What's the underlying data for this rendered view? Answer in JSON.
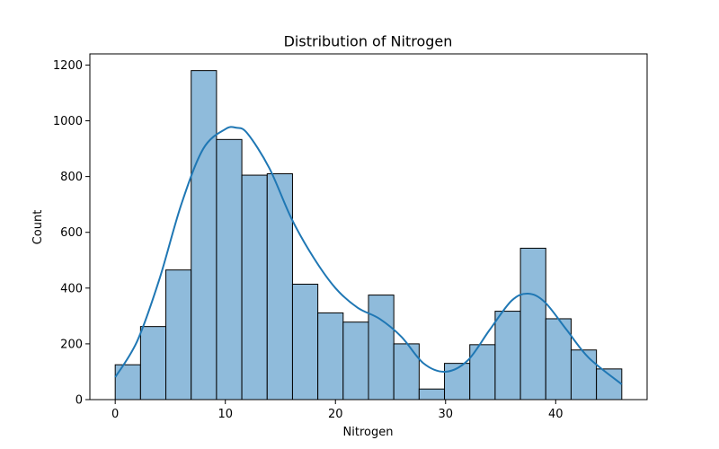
{
  "chart_data": {
    "type": "bar",
    "title": "Distribution of Nitrogen",
    "xlabel": "Nitrogen",
    "ylabel": "Count",
    "xlim": [
      -2.3,
      48.3
    ],
    "ylim": [
      0,
      1240
    ],
    "x_ticks": [
      0,
      10,
      20,
      30,
      40
    ],
    "y_ticks": [
      0,
      200,
      400,
      600,
      800,
      1000,
      1200
    ],
    "bins": [
      {
        "start": 0.0,
        "end": 2.3,
        "count": 125
      },
      {
        "start": 2.3,
        "end": 4.6,
        "count": 262
      },
      {
        "start": 4.6,
        "end": 6.9,
        "count": 465
      },
      {
        "start": 6.9,
        "end": 9.2,
        "count": 1180
      },
      {
        "start": 9.2,
        "end": 11.5,
        "count": 933
      },
      {
        "start": 11.5,
        "end": 13.8,
        "count": 805
      },
      {
        "start": 13.8,
        "end": 16.1,
        "count": 810
      },
      {
        "start": 16.1,
        "end": 18.4,
        "count": 414
      },
      {
        "start": 18.4,
        "end": 20.7,
        "count": 311
      },
      {
        "start": 20.7,
        "end": 23.0,
        "count": 278
      },
      {
        "start": 23.0,
        "end": 25.3,
        "count": 375
      },
      {
        "start": 25.3,
        "end": 27.6,
        "count": 200
      },
      {
        "start": 27.6,
        "end": 29.9,
        "count": 38
      },
      {
        "start": 29.9,
        "end": 32.2,
        "count": 130
      },
      {
        "start": 32.2,
        "end": 34.5,
        "count": 197
      },
      {
        "start": 34.5,
        "end": 36.8,
        "count": 317
      },
      {
        "start": 36.8,
        "end": 39.1,
        "count": 543
      },
      {
        "start": 39.1,
        "end": 41.4,
        "count": 290
      },
      {
        "start": 41.4,
        "end": 43.7,
        "count": 178
      },
      {
        "start": 43.7,
        "end": 46.0,
        "count": 110
      }
    ],
    "kde": {
      "x": [
        0,
        2,
        4,
        6,
        8,
        10,
        11,
        12,
        14,
        16,
        18,
        20,
        22,
        24,
        26,
        28,
        30,
        32,
        34,
        36,
        37.5,
        39,
        41,
        43,
        46
      ],
      "y": [
        80,
        210,
        430,
        700,
        900,
        970,
        975,
        955,
        830,
        650,
        510,
        400,
        330,
        290,
        225,
        130,
        100,
        140,
        250,
        355,
        380,
        350,
        250,
        150,
        55
      ]
    },
    "grid": false,
    "legend": "none",
    "colors": {
      "bar_fill": "#8fbbdb",
      "bar_edge": "#000000",
      "kde_line": "#1f77b4"
    }
  }
}
